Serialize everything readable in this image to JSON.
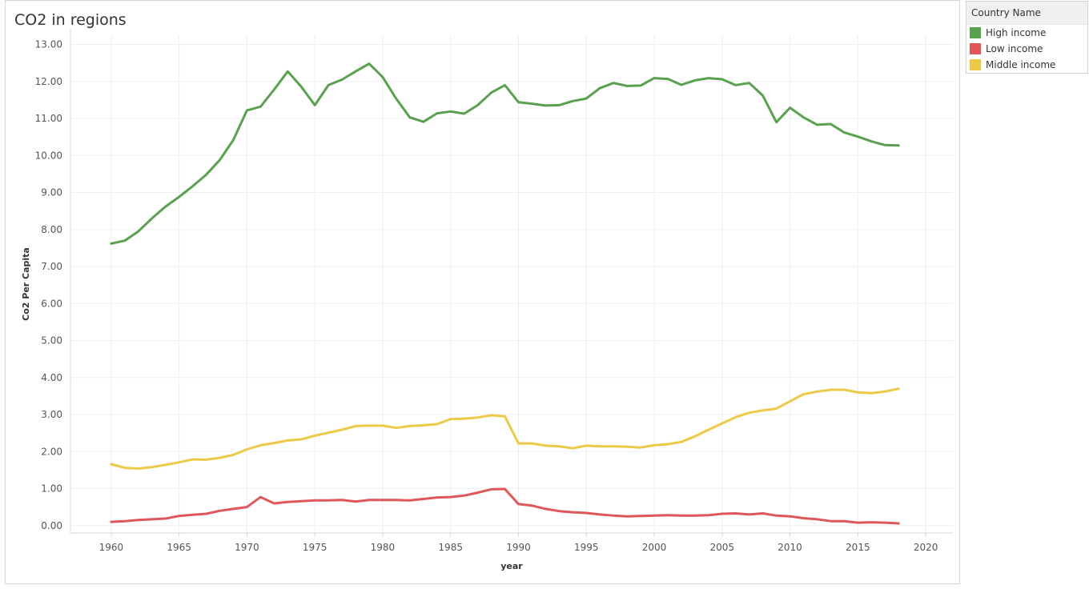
{
  "title": "CO2 in regions",
  "legend": {
    "title": "Country Name",
    "items": [
      {
        "label": "High income",
        "color": "#59a14f"
      },
      {
        "label": "Low income",
        "color": "#e15759"
      },
      {
        "label": "Middle income",
        "color": "#edc948"
      }
    ]
  },
  "chart_data": {
    "type": "line",
    "title": "CO2 in regions",
    "xlabel": "year",
    "ylabel": "Co2 Per Capita",
    "xlim": [
      1957,
      2022
    ],
    "ylim": [
      -0.2,
      13.25
    ],
    "x_ticks": [
      1960,
      1965,
      1970,
      1975,
      1980,
      1985,
      1990,
      1995,
      2000,
      2005,
      2010,
      2015,
      2020
    ],
    "y_ticks": [
      0,
      1,
      2,
      3,
      4,
      5,
      6,
      7,
      8,
      9,
      10,
      11,
      12,
      13
    ],
    "y_tick_labels": [
      "0.00",
      "1.00",
      "2.00",
      "3.00",
      "4.00",
      "5.00",
      "6.00",
      "7.00",
      "8.00",
      "9.00",
      "10.00",
      "11.00",
      "12.00",
      "13.00"
    ],
    "grid": true,
    "legend_position": "top-right-outside",
    "x": [
      1960,
      1961,
      1962,
      1963,
      1964,
      1965,
      1966,
      1967,
      1968,
      1969,
      1970,
      1971,
      1972,
      1973,
      1974,
      1975,
      1976,
      1977,
      1978,
      1979,
      1980,
      1981,
      1982,
      1983,
      1984,
      1985,
      1986,
      1987,
      1988,
      1989,
      1990,
      1991,
      1992,
      1993,
      1994,
      1995,
      1996,
      1997,
      1998,
      1999,
      2000,
      2001,
      2002,
      2003,
      2004,
      2005,
      2006,
      2007,
      2008,
      2009,
      2010,
      2011,
      2012,
      2013,
      2014,
      2015,
      2016,
      2017,
      2018
    ],
    "series": [
      {
        "name": "High income",
        "color": "#59a14f",
        "values": [
          7.62,
          7.7,
          7.95,
          8.3,
          8.62,
          8.88,
          9.17,
          9.48,
          9.88,
          10.42,
          11.22,
          11.32,
          11.78,
          12.27,
          11.86,
          11.36,
          11.9,
          12.05,
          12.27,
          12.48,
          12.12,
          11.53,
          11.03,
          10.91,
          11.14,
          11.19,
          11.13,
          11.36,
          11.7,
          11.9,
          11.44,
          11.4,
          11.35,
          11.36,
          11.47,
          11.54,
          11.82,
          11.96,
          11.88,
          11.89,
          12.09,
          12.07,
          11.91,
          12.03,
          12.09,
          12.06,
          11.9,
          11.96,
          11.62,
          10.9,
          11.29,
          11.03,
          10.83,
          10.85,
          10.62,
          10.51,
          10.38,
          10.28,
          10.27
        ]
      },
      {
        "name": "Low income",
        "color": "#e15759",
        "values": [
          0.1,
          0.12,
          0.15,
          0.17,
          0.19,
          0.26,
          0.29,
          0.32,
          0.4,
          0.45,
          0.5,
          0.77,
          0.6,
          0.64,
          0.66,
          0.68,
          0.68,
          0.69,
          0.65,
          0.69,
          0.69,
          0.69,
          0.68,
          0.72,
          0.76,
          0.77,
          0.81,
          0.89,
          0.98,
          0.99,
          0.58,
          0.54,
          0.45,
          0.39,
          0.36,
          0.34,
          0.3,
          0.27,
          0.25,
          0.26,
          0.27,
          0.28,
          0.27,
          0.27,
          0.28,
          0.32,
          0.33,
          0.3,
          0.33,
          0.27,
          0.25,
          0.2,
          0.17,
          0.12,
          0.12,
          0.08,
          0.09,
          0.08,
          0.06
        ]
      },
      {
        "name": "Middle income",
        "color": "#edc948",
        "values": [
          1.66,
          1.56,
          1.54,
          1.58,
          1.64,
          1.71,
          1.79,
          1.78,
          1.83,
          1.91,
          2.06,
          2.17,
          2.23,
          2.3,
          2.33,
          2.43,
          2.51,
          2.59,
          2.69,
          2.7,
          2.7,
          2.64,
          2.69,
          2.71,
          2.74,
          2.88,
          2.89,
          2.92,
          2.98,
          2.95,
          2.22,
          2.22,
          2.16,
          2.14,
          2.09,
          2.16,
          2.14,
          2.14,
          2.13,
          2.11,
          2.17,
          2.2,
          2.26,
          2.41,
          2.59,
          2.76,
          2.93,
          3.05,
          3.11,
          3.16,
          3.36,
          3.55,
          3.62,
          3.67,
          3.67,
          3.6,
          3.58,
          3.62,
          3.7
        ]
      }
    ]
  }
}
